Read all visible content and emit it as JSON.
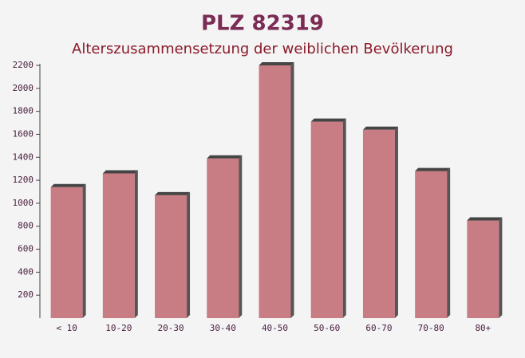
{
  "chart_data": {
    "type": "bar",
    "title": "PLZ 82319",
    "subtitle": "Alterszusammensetzung der weiblichen Bevölkerung",
    "categories": [
      "< 10",
      "10-20",
      "20-30",
      "30-40",
      "40-50",
      "50-60",
      "60-70",
      "70-80",
      "80+"
    ],
    "values": [
      1140,
      1260,
      1070,
      1390,
      2200,
      1710,
      1640,
      1280,
      850
    ],
    "color": "#c0666e",
    "ylim": [
      0,
      2200
    ],
    "yticks": [
      200,
      400,
      600,
      800,
      1000,
      1200,
      1400,
      1600,
      1800,
      2000,
      2200
    ]
  }
}
